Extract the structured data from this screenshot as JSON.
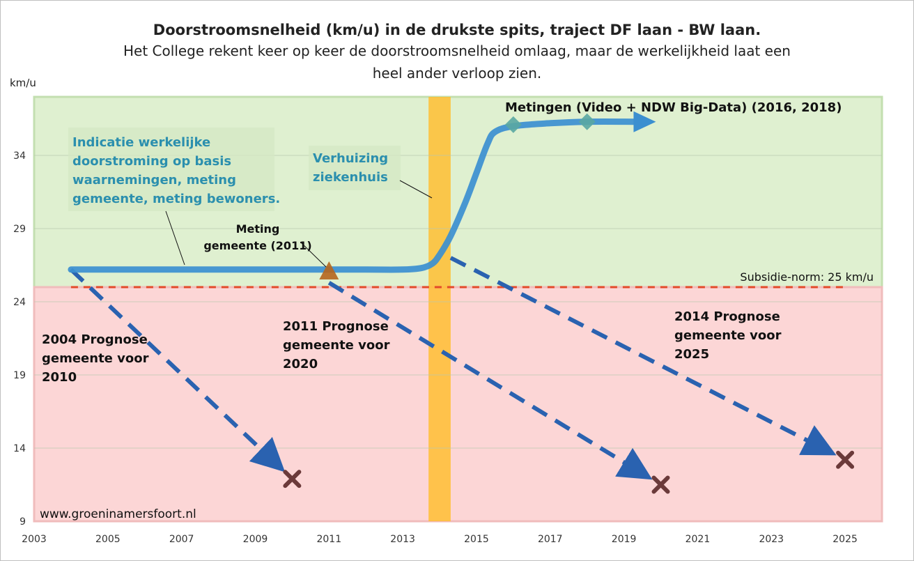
{
  "chart_data": {
    "type": "line",
    "title": "Doorstroomsnelheid (km/u) in de drukste spits, traject DF laan - BW laan.",
    "subtitle_lines": [
      "Het College rekent keer op keer de doorstroomsnelheid omlaag, maar de werkelijkheid laat een",
      "heel ander verloop zien."
    ],
    "ylabel": "km/u",
    "xlabel": "",
    "xlim": [
      2003,
      2026
    ],
    "ylim": [
      9,
      38
    ],
    "x_ticks": [
      "2003",
      "2005",
      "2007",
      "2009",
      "2011",
      "2013",
      "2015",
      "2017",
      "2019",
      "2021",
      "2023",
      "2025"
    ],
    "y_ticks": [
      "9",
      "14",
      "19",
      "24",
      "29",
      "34"
    ],
    "grid": "horizontal",
    "zones": {
      "green_above": 25,
      "green_color": "#dff0d0",
      "red_color": "#fcd6d6"
    },
    "norm": {
      "label": "Subsidie-norm: 25 km/u",
      "value": 25,
      "x_range": [
        2004,
        2025
      ],
      "color": "#e34a2a"
    },
    "highlight_band": {
      "x_range": [
        2013.7,
        2014.3
      ],
      "color": "#ffbe32"
    },
    "actual_series": {
      "label_lines": [
        "Indicatie werkelijke",
        "doorstroming op basis",
        "waarnemingen, meting",
        "gemeente, meting bewoners."
      ],
      "color": "#3b8fd0",
      "x": [
        2004,
        2006,
        2008,
        2010,
        2011,
        2012,
        2013,
        2013.5,
        2013.8,
        2014,
        2014.3,
        2014.7,
        2015,
        2015.3,
        2015.5,
        2016,
        2017,
        2018,
        2019.3
      ],
      "y": [
        26.2,
        26.2,
        26.2,
        26.2,
        26.2,
        26.2,
        26.2,
        26.3,
        26.6,
        27.2,
        28.5,
        30.8,
        32.8,
        34.8,
        35.6,
        36.0,
        36.2,
        36.3,
        36.3
      ]
    },
    "measurements": {
      "label": "Metingen (Video + NDW Big-Data) (2016, 2018)",
      "points": [
        {
          "x": 2016,
          "y": 36.1
        },
        {
          "x": 2018,
          "y": 36.3
        }
      ],
      "color": "#5aa7a2"
    },
    "municipal_measurement": {
      "label_lines": [
        "Meting",
        "gemeente (2011)"
      ],
      "x": 2011,
      "y": 26.0,
      "color": "#b5651d"
    },
    "hospital_move": {
      "label_lines": [
        "Verhuizing",
        "ziekenhuis"
      ]
    },
    "forecasts": [
      {
        "label_lines": [
          "2004 Prognose",
          "gemeente voor",
          "2010"
        ],
        "x": [
          2004,
          2010
        ],
        "y": [
          26.2,
          11.9
        ]
      },
      {
        "label_lines": [
          "2011 Prognose",
          "gemeente voor",
          "2020"
        ],
        "x": [
          2011,
          2020
        ],
        "y": [
          25.3,
          11.5
        ]
      },
      {
        "label_lines": [
          "2014 Prognose",
          "gemeente voor",
          "2025"
        ],
        "x": [
          2014.3,
          2025
        ],
        "y": [
          27.0,
          13.2
        ]
      }
    ],
    "forecast_color": "#2a62b0",
    "x_marker_color": "#6b3a3a",
    "source": "www.groeninamersfoort.nl"
  }
}
